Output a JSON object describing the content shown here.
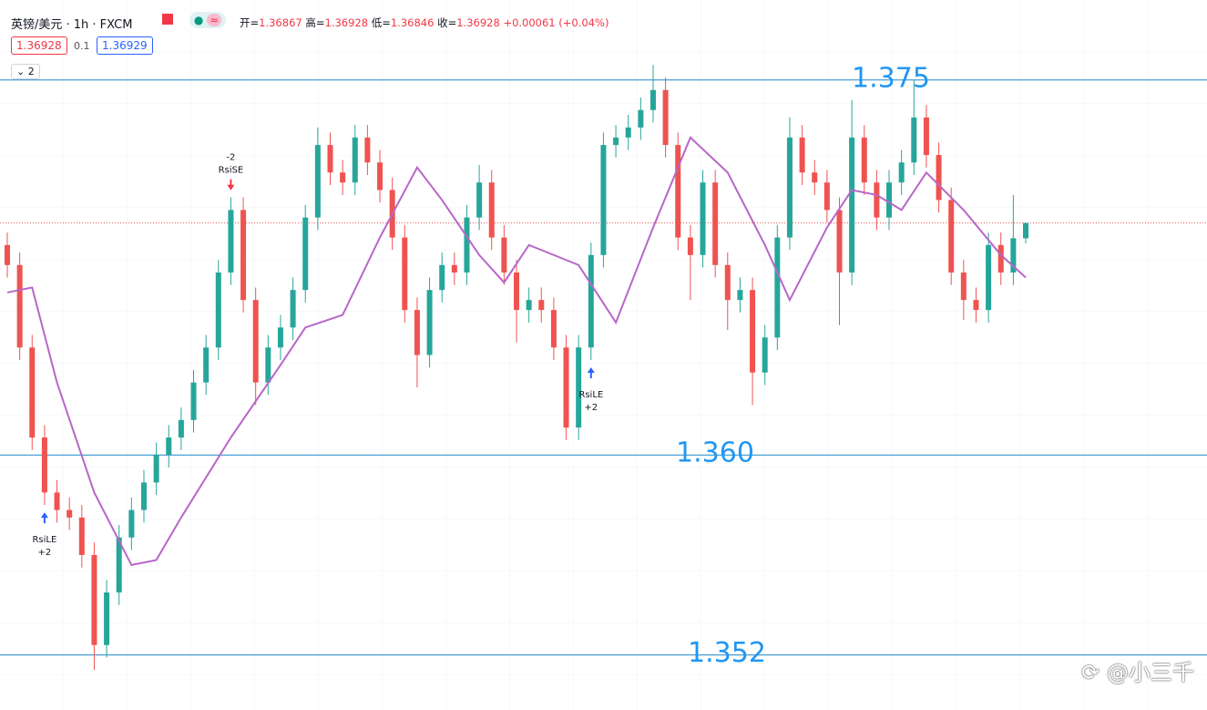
{
  "header": {
    "symbol": "英镑/美元 · 1h · FXCM",
    "open_label": "开=",
    "open": 1.36867,
    "high_label": "高=",
    "high": 1.36928,
    "low_label": "低=",
    "low": 1.36846,
    "close_label": "收=",
    "close": 1.36928,
    "change": {
      "value": 0.00061,
      "label": "+0.00061"
    },
    "change_pct": "(+0.04%)",
    "bid": 1.36928,
    "spread": 0.1,
    "ask": 1.36929,
    "indicator_toggle": "2"
  },
  "chart_data": {
    "type": "candlestick",
    "up_color": "#26a69a",
    "down_color": "#ef5350",
    "ylim": [
      1.3498,
      1.3782
    ],
    "open": [
      1.3684,
      1.3676,
      1.3643,
      1.3607,
      1.3585,
      1.3578,
      1.3575,
      1.356,
      1.3524,
      1.3545,
      1.3567,
      1.3578,
      1.3589,
      1.36,
      1.3607,
      1.3614,
      1.3629,
      1.3643,
      1.3673,
      1.3698,
      1.3662,
      1.3629,
      1.3643,
      1.3651,
      1.3666,
      1.3695,
      1.3724,
      1.3713,
      1.3709,
      1.3727,
      1.3717,
      1.3706,
      1.3687,
      1.3658,
      1.364,
      1.3666,
      1.3676,
      1.3673,
      1.3695,
      1.3709,
      1.3687,
      1.3673,
      1.3658,
      1.3662,
      1.3658,
      1.3643,
      1.3611,
      1.3643,
      1.368,
      1.3724,
      1.3727,
      1.3731,
      1.3738,
      1.3746,
      1.3724,
      1.3687,
      1.368,
      1.3709,
      1.3676,
      1.3662,
      1.3666,
      1.3633,
      1.3647,
      1.3687,
      1.3727,
      1.3713,
      1.3709,
      1.3698,
      1.3673,
      1.3727,
      1.3709,
      1.3695,
      1.3709,
      1.3717,
      1.3735,
      1.372,
      1.3702,
      1.3673,
      1.3662,
      1.3658,
      1.3684,
      1.3673,
      1.36867
    ],
    "high": [
      1.3689,
      1.3681,
      1.3648,
      1.3612,
      1.359,
      1.3583,
      1.358,
      1.3565,
      1.355,
      1.3572,
      1.3583,
      1.3594,
      1.3605,
      1.3612,
      1.3619,
      1.3634,
      1.3648,
      1.3678,
      1.3703,
      1.3703,
      1.3667,
      1.3648,
      1.3656,
      1.3671,
      1.37,
      1.3731,
      1.3729,
      1.3718,
      1.3732,
      1.3732,
      1.3722,
      1.3711,
      1.3692,
      1.3663,
      1.3671,
      1.3681,
      1.3681,
      1.37,
      1.3716,
      1.3714,
      1.3692,
      1.3678,
      1.3667,
      1.3667,
      1.3663,
      1.3648,
      1.3648,
      1.3685,
      1.3729,
      1.3732,
      1.3736,
      1.3743,
      1.3756,
      1.3751,
      1.3729,
      1.3692,
      1.3714,
      1.3714,
      1.3681,
      1.3671,
      1.3671,
      1.3652,
      1.3692,
      1.3735,
      1.3732,
      1.3718,
      1.3714,
      1.3703,
      1.3742,
      1.3732,
      1.3714,
      1.3714,
      1.3722,
      1.375,
      1.374,
      1.3725,
      1.3707,
      1.3678,
      1.3667,
      1.3689,
      1.3689,
      1.3704,
      1.36928
    ],
    "low": [
      1.3671,
      1.3638,
      1.3602,
      1.358,
      1.3573,
      1.357,
      1.3555,
      1.3514,
      1.3519,
      1.354,
      1.3562,
      1.3573,
      1.3584,
      1.3595,
      1.3602,
      1.3609,
      1.3624,
      1.3638,
      1.3668,
      1.3657,
      1.362,
      1.3624,
      1.3638,
      1.3646,
      1.3661,
      1.369,
      1.3708,
      1.3704,
      1.3704,
      1.3712,
      1.3701,
      1.3682,
      1.3653,
      1.3627,
      1.3635,
      1.3661,
      1.3668,
      1.3668,
      1.369,
      1.3682,
      1.3668,
      1.3645,
      1.3653,
      1.3653,
      1.3638,
      1.3606,
      1.3606,
      1.3638,
      1.3675,
      1.3719,
      1.3722,
      1.3726,
      1.3733,
      1.3719,
      1.3682,
      1.3662,
      1.3675,
      1.3671,
      1.365,
      1.3657,
      1.362,
      1.3628,
      1.3642,
      1.3682,
      1.3708,
      1.3704,
      1.3693,
      1.3652,
      1.3668,
      1.3704,
      1.369,
      1.369,
      1.3704,
      1.3712,
      1.3715,
      1.3697,
      1.3668,
      1.3654,
      1.3653,
      1.3653,
      1.3668,
      1.3668,
      1.36846
    ],
    "close": [
      1.3676,
      1.3643,
      1.3607,
      1.3585,
      1.3578,
      1.3575,
      1.356,
      1.3524,
      1.3545,
      1.3567,
      1.3578,
      1.3589,
      1.36,
      1.3607,
      1.3614,
      1.3629,
      1.3643,
      1.3673,
      1.3698,
      1.3662,
      1.3629,
      1.3643,
      1.3651,
      1.3666,
      1.3695,
      1.3724,
      1.3713,
      1.3709,
      1.3727,
      1.3717,
      1.3706,
      1.3687,
      1.3658,
      1.364,
      1.3666,
      1.3676,
      1.3673,
      1.3695,
      1.3709,
      1.3687,
      1.3673,
      1.3658,
      1.3662,
      1.3658,
      1.3643,
      1.3611,
      1.3643,
      1.368,
      1.3724,
      1.3727,
      1.3731,
      1.3738,
      1.3746,
      1.3724,
      1.3687,
      1.368,
      1.3709,
      1.3676,
      1.3662,
      1.3666,
      1.3633,
      1.3647,
      1.3687,
      1.3727,
      1.3713,
      1.3709,
      1.3698,
      1.3673,
      1.3727,
      1.3709,
      1.3695,
      1.3709,
      1.3717,
      1.3735,
      1.372,
      1.3702,
      1.3673,
      1.3662,
      1.3658,
      1.3684,
      1.3673,
      1.36867,
      1.36928
    ],
    "ma": {
      "color": "#b866c8",
      "x": [
        0,
        2,
        4,
        7,
        10,
        12,
        14,
        18,
        22,
        24,
        27,
        30,
        33,
        35,
        38,
        40,
        42,
        46,
        49,
        52,
        55,
        58,
        61,
        63,
        66,
        68,
        70,
        72,
        74,
        77,
        80,
        82
      ],
      "values": [
        1.3665,
        1.3667,
        1.3629,
        1.3585,
        1.3556,
        1.3558,
        1.3575,
        1.3607,
        1.3636,
        1.3651,
        1.3656,
        1.3687,
        1.3715,
        1.3702,
        1.368,
        1.3669,
        1.3684,
        1.3676,
        1.3653,
        1.3691,
        1.3727,
        1.3713,
        1.3684,
        1.3662,
        1.3691,
        1.3706,
        1.3704,
        1.3698,
        1.3713,
        1.3698,
        1.368,
        1.3671
      ]
    },
    "hlines": [
      {
        "value": 1.375,
        "label": "1.375"
      },
      {
        "value": 1.36,
        "label": "1.360"
      },
      {
        "value": 1.352,
        "label": "1.352"
      }
    ],
    "last_price": 1.36928,
    "signals": [
      {
        "index": 3,
        "label": "RsiLE",
        "qty": "+2",
        "side": "long"
      },
      {
        "index": 18,
        "label": "RsiSE",
        "qty": "-2",
        "side": "short"
      },
      {
        "index": 47,
        "label": "RsiLE",
        "qty": "+2",
        "side": "long"
      }
    ]
  },
  "watermark": "@小三千"
}
